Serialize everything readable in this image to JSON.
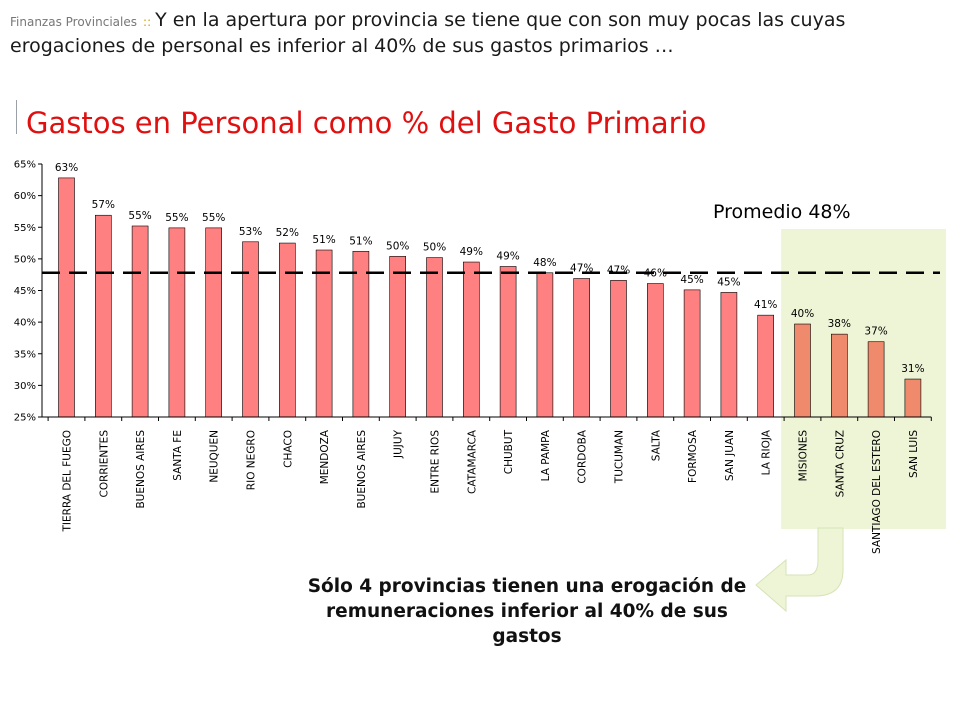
{
  "header": {
    "section": "Finanzas Provinciales",
    "separator": "::",
    "text": "Y en la apertura por provincia se tiene que con son muy pocas las cuyas erogaciones de personal es inferior al 40% de sus gastos primarios …"
  },
  "note": "Sólo 4 provincias tienen una erogación de remuneraciones inferior al 40% de sus gastos",
  "chart_data": {
    "type": "bar",
    "title": "Gastos en Personal como % del Gasto Primario",
    "xlabel": "",
    "ylabel": "",
    "ylim": [
      25,
      65
    ],
    "yticks": [
      25,
      30,
      35,
      40,
      45,
      50,
      55,
      60,
      65
    ],
    "ytick_labels": [
      "25%",
      "30%",
      "35%",
      "40%",
      "45%",
      "50%",
      "55%",
      "60%",
      "65%"
    ],
    "categories": [
      "TIERRA DEL FUEGO",
      "CORRIENTES",
      "BUENOS AIRES",
      "SANTA FE",
      "NEUQUEN",
      "RIO NEGRO",
      "CHACO",
      "MENDOZA",
      "BUENOS AIRES",
      "JUJUY",
      "ENTRE RIOS",
      "CATAMARCA",
      "CHUBUT",
      "LA PAMPA",
      "CORDOBA",
      "TUCUMAN",
      "SALTA",
      "FORMOSA",
      "SAN JUAN",
      "LA RIOJA",
      "MISIONES",
      "SANTA CRUZ",
      "SANTIAGO DEL ESTERO",
      "SAN LUIS"
    ],
    "values": [
      62.8,
      56.9,
      55.2,
      54.9,
      54.9,
      52.7,
      52.5,
      51.4,
      51.2,
      50.4,
      50.2,
      49.5,
      48.8,
      47.8,
      46.9,
      46.6,
      46.1,
      45.1,
      44.7,
      41.1,
      39.7,
      38.1,
      36.9,
      31.0
    ],
    "data_labels": [
      "63%",
      "57%",
      "55%",
      "55%",
      "55%",
      "53%",
      "52%",
      "51%",
      "51%",
      "50%",
      "50%",
      "49%",
      "49%",
      "48%",
      "47%",
      "47%",
      "46%",
      "45%",
      "45%",
      "41%",
      "40%",
      "38%",
      "37%",
      "31%"
    ],
    "highlight_from_index": 20,
    "average": {
      "label": "Promedio 48%",
      "value": 47.8
    },
    "colors": {
      "bar": "#ff8080",
      "bar_highlight": "#ef8a6c",
      "highlight_area": "#eef5d6",
      "axis": "#000000",
      "title": "#e01010"
    },
    "grid": false
  }
}
